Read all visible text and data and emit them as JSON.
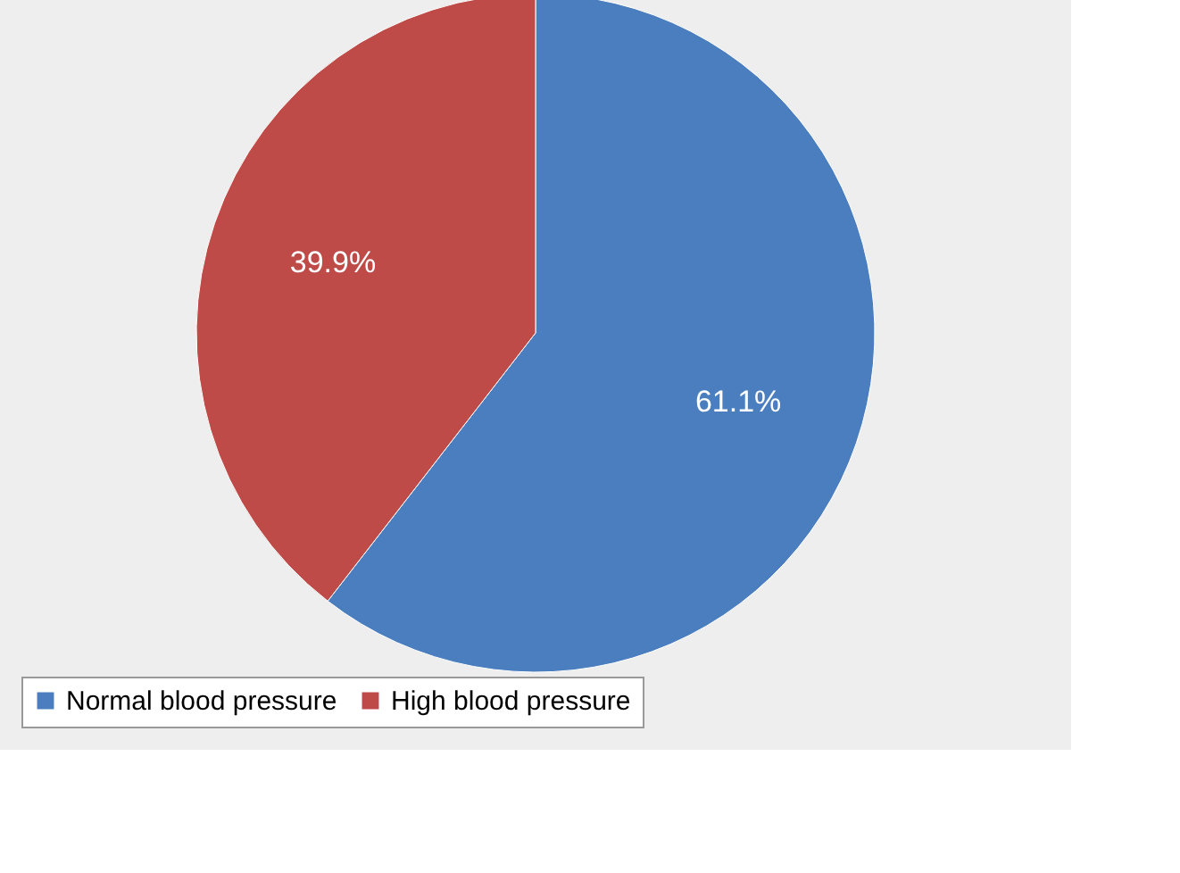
{
  "chart_data": {
    "type": "pie",
    "categories": [
      "Normal blood pressure",
      "High blood pressure"
    ],
    "values": [
      61.1,
      39.9
    ],
    "colors": [
      "#4a7ebf",
      "#be4b48"
    ],
    "value_labels": [
      "61.1%",
      "39.9%"
    ],
    "legend": "bottom"
  }
}
